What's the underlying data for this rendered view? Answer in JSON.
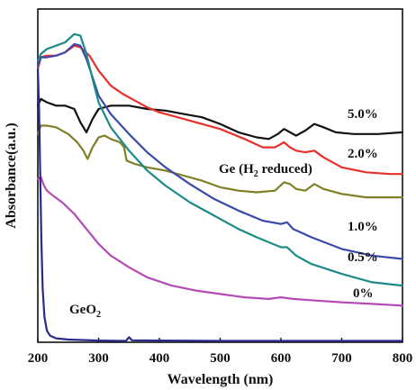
{
  "chart_data": {
    "type": "line",
    "xlabel": "Wavelength (nm)",
    "ylabel": "Absorbance(a.u.)",
    "xlim": [
      200,
      800
    ],
    "ylim": [
      0,
      10
    ],
    "xticks": [
      200,
      300,
      400,
      500,
      600,
      700,
      800
    ],
    "yticks_shown": false,
    "grid": false,
    "legend": "inline labels next to curves",
    "series": [
      {
        "name": "5.0%",
        "color": "#111111",
        "x": [
          200,
          205,
          215,
          230,
          245,
          260,
          270,
          280,
          290,
          300,
          320,
          350,
          380,
          410,
          440,
          470,
          500,
          530,
          560,
          580,
          595,
          605,
          615,
          625,
          640,
          655,
          670,
          690,
          720,
          760,
          800
        ],
        "y": [
          7.1,
          7.3,
          7.2,
          7.1,
          7.1,
          7.0,
          6.6,
          6.3,
          6.7,
          7.0,
          7.1,
          7.1,
          7.0,
          6.95,
          6.85,
          6.75,
          6.55,
          6.3,
          6.15,
          6.1,
          6.25,
          6.4,
          6.3,
          6.2,
          6.35,
          6.55,
          6.45,
          6.3,
          6.25,
          6.25,
          6.3
        ]
      },
      {
        "name": "2.0%",
        "color": "#e8302a",
        "x": [
          200,
          205,
          215,
          230,
          245,
          260,
          270,
          285,
          300,
          320,
          340,
          360,
          380,
          400,
          430,
          460,
          500,
          540,
          570,
          590,
          605,
          615,
          625,
          640,
          655,
          670,
          700,
          740,
          780,
          800
        ],
        "y": [
          8.2,
          8.55,
          8.6,
          8.6,
          8.7,
          8.9,
          8.85,
          8.6,
          8.15,
          7.7,
          7.45,
          7.25,
          7.05,
          6.9,
          6.75,
          6.6,
          6.4,
          6.1,
          5.85,
          5.85,
          6.0,
          5.85,
          5.75,
          5.7,
          5.75,
          5.55,
          5.25,
          5.1,
          5.05,
          5.05
        ]
      },
      {
        "name": "Ge (H2 reduced)",
        "color": "#7f7f26",
        "x": [
          200,
          205,
          215,
          230,
          250,
          265,
          275,
          282,
          290,
          300,
          310,
          320,
          335,
          342,
          346,
          360,
          380,
          410,
          440,
          470,
          500,
          530,
          560,
          590,
          605,
          615,
          625,
          640,
          655,
          670,
          700,
          740,
          780,
          800
        ],
        "y": [
          6.25,
          6.5,
          6.5,
          6.45,
          6.25,
          6.0,
          5.75,
          5.5,
          5.85,
          6.15,
          6.2,
          6.1,
          6.0,
          5.85,
          5.45,
          5.35,
          5.25,
          5.15,
          5.0,
          4.85,
          4.65,
          4.55,
          4.5,
          4.55,
          4.8,
          4.75,
          4.6,
          4.55,
          4.75,
          4.6,
          4.45,
          4.35,
          4.35,
          4.35
        ]
      },
      {
        "name": "1.0%",
        "color": "#3b4aa8",
        "x": [
          200,
          205,
          215,
          230,
          245,
          260,
          270,
          280,
          290,
          300,
          320,
          350,
          380,
          410,
          450,
          490,
          530,
          570,
          600,
          610,
          620,
          650,
          700,
          750,
          800
        ],
        "y": [
          8.3,
          8.55,
          8.55,
          8.6,
          8.7,
          8.95,
          8.9,
          8.5,
          7.95,
          7.4,
          6.85,
          6.25,
          5.7,
          5.25,
          4.75,
          4.3,
          3.95,
          3.65,
          3.55,
          3.6,
          3.4,
          3.15,
          2.8,
          2.6,
          2.5
        ]
      },
      {
        "name": "0.5%",
        "color": "#1e8a88",
        "x": [
          200,
          205,
          215,
          230,
          245,
          260,
          270,
          280,
          290,
          300,
          320,
          350,
          380,
          410,
          450,
          490,
          530,
          560,
          600,
          610,
          625,
          650,
          700,
          750,
          800
        ],
        "y": [
          8.45,
          8.65,
          8.8,
          8.9,
          9.0,
          9.25,
          9.2,
          8.65,
          7.9,
          7.2,
          6.45,
          5.75,
          5.15,
          4.7,
          4.2,
          3.8,
          3.4,
          3.15,
          2.85,
          2.85,
          2.6,
          2.35,
          2.05,
          1.8,
          1.7
        ]
      },
      {
        "name": "0%",
        "color": "#b44bb4",
        "x": [
          200,
          205,
          210,
          215,
          225,
          240,
          260,
          280,
          300,
          320,
          350,
          380,
          420,
          460,
          500,
          540,
          580,
          600,
          620,
          660,
          700,
          750,
          800
        ],
        "y": [
          4.9,
          4.95,
          4.7,
          4.55,
          4.4,
          4.2,
          3.85,
          3.4,
          2.95,
          2.6,
          2.25,
          1.95,
          1.7,
          1.55,
          1.45,
          1.35,
          1.3,
          1.35,
          1.3,
          1.25,
          1.2,
          1.15,
          1.1
        ]
      },
      {
        "name": "GeO2",
        "color": "#2a2a8a",
        "x": [
          200,
          202,
          204,
          206,
          208,
          211,
          215,
          220,
          230,
          250,
          300,
          345,
          350,
          355,
          400,
          500,
          600,
          700,
          800
        ],
        "y": [
          8.2,
          7.0,
          5.0,
          3.0,
          1.6,
          0.75,
          0.35,
          0.2,
          0.12,
          0.08,
          0.05,
          0.04,
          0.15,
          0.06,
          0.05,
          0.04,
          0.04,
          0.04,
          0.04
        ]
      }
    ],
    "annotations": [
      {
        "key": "label_5",
        "text": "5.0%"
      },
      {
        "key": "label_2",
        "text": "2.0%"
      },
      {
        "key": "label_ge",
        "main": "Ge (H",
        "sub": "2",
        "rest": " reduced)"
      },
      {
        "key": "label_1",
        "text": "1.0%"
      },
      {
        "key": "label_05",
        "text": "0.5%"
      },
      {
        "key": "label_0",
        "text": "0%"
      },
      {
        "key": "label_geo2",
        "main": "GeO",
        "sub": "2"
      }
    ]
  }
}
